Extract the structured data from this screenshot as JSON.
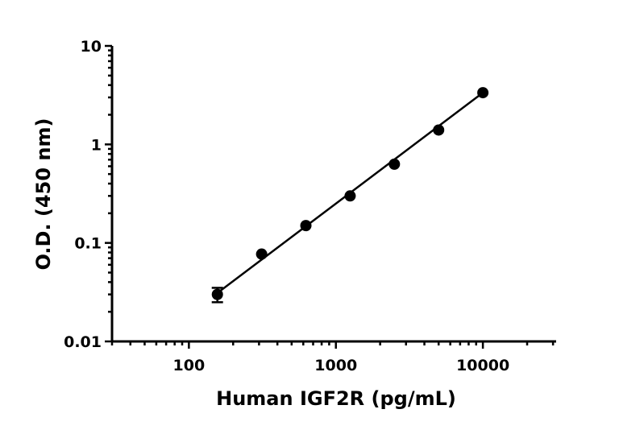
{
  "chart_data": {
    "type": "scatter",
    "title": "",
    "xlabel": "Human IGF2R (pg/mL)",
    "ylabel": "O.D. (450 nm)",
    "x_scale": "log",
    "y_scale": "log",
    "xlim": [
      30,
      31500
    ],
    "ylim": [
      0.01,
      10
    ],
    "x_ticks": [
      100,
      1000,
      10000
    ],
    "x_tick_labels": [
      "100",
      "1000",
      "10000"
    ],
    "y_ticks": [
      0.01,
      0.1,
      1,
      10
    ],
    "y_tick_labels": [
      "0.01",
      "0.1",
      "1",
      "10"
    ],
    "grid": false,
    "legend": "none",
    "series": [
      {
        "x": [
          156.25,
          312.5,
          625,
          1250,
          2500,
          5000,
          10000
        ],
        "y": [
          0.03,
          0.077,
          0.15,
          0.3,
          0.63,
          1.4,
          3.35
        ],
        "y_err": [
          0.005,
          0.003,
          0.004,
          0.008,
          0.015,
          0.03,
          0.06
        ]
      }
    ],
    "fit_line": {
      "x": [
        156.25,
        10000
      ],
      "y": [
        0.031,
        3.35
      ]
    }
  }
}
